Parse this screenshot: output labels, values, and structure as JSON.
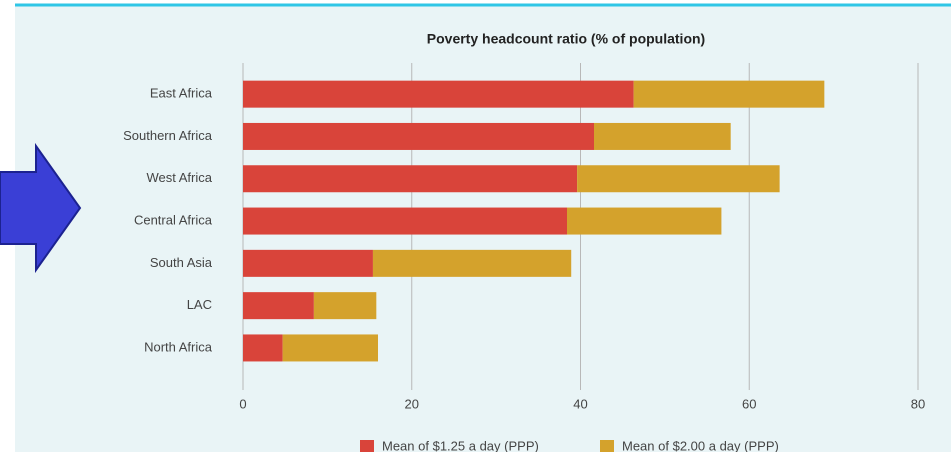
{
  "chart_data": {
    "type": "bar",
    "orientation": "horizontal",
    "stacked": true,
    "title": "Poverty headcount ratio (% of population)",
    "categories": [
      "East Africa",
      "Southern Africa",
      "West Africa",
      "Central Africa",
      "South Asia",
      "LAC",
      "North Africa"
    ],
    "series": [
      {
        "name": "Mean of $1.25 a day (PPP)",
        "color": "#d9443a",
        "values": [
          46.3,
          41.6,
          39.6,
          38.4,
          15.4,
          8.4,
          4.7
        ]
      },
      {
        "name": "Mean of $2.00 a day (PPP)",
        "color": "#d4a22c",
        "values": [
          22.6,
          16.2,
          24.0,
          18.3,
          23.5,
          7.4,
          11.3
        ]
      }
    ],
    "xlim": [
      0,
      80
    ],
    "xticks": [
      0,
      20,
      40,
      60,
      80
    ],
    "grid": true
  }
}
